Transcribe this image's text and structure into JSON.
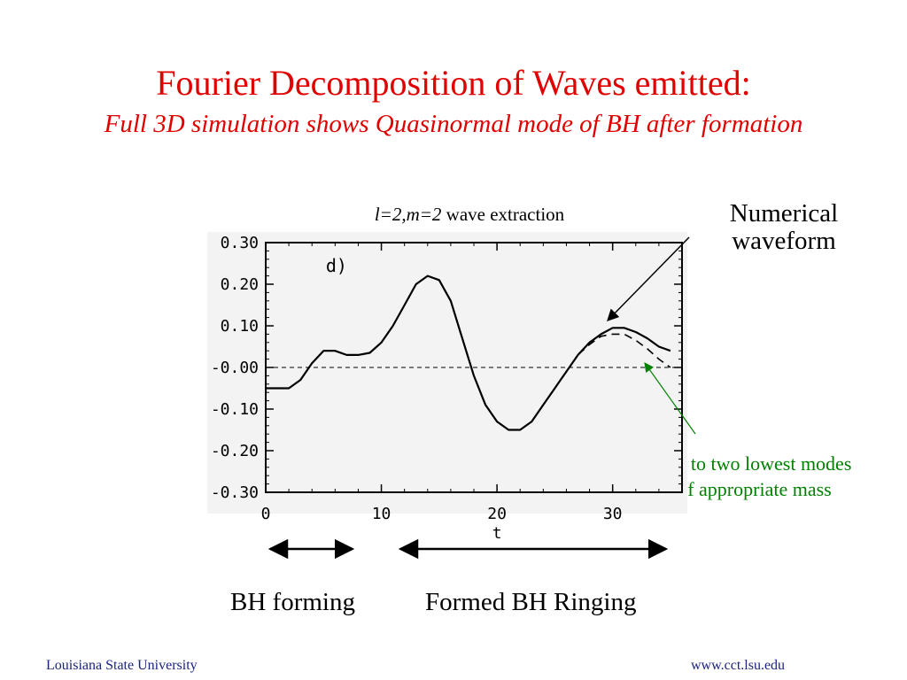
{
  "slide": {
    "title": "Fourier Decomposition of Waves emitted:",
    "subtitle": "Full 3D simulation shows Quasinormal mode of BH after formation",
    "caption_italic": "l=2,m=2",
    "caption_rest": " wave extraction",
    "annotation_numerical": "Numerical waveform",
    "annotation_qnm": "QNM fit to two lowest modes for BH of appropriate mass",
    "label_forming": "BH forming",
    "label_ringing": "Formed BH Ringing",
    "footer_left": "Louisiana State University",
    "footer_right": "www.cct.lsu.edu"
  },
  "colors": {
    "title": "#e00000",
    "qnm_annotation": "#008000",
    "footer": "#1a237e"
  },
  "chart_data": {
    "type": "line",
    "panel_label": "d)",
    "xlabel": "t",
    "ylabel": "",
    "xlim": [
      0,
      36
    ],
    "ylim": [
      -0.3,
      0.3
    ],
    "x_ticks": [
      0,
      10,
      20,
      30
    ],
    "y_ticks": [
      0.3,
      0.2,
      0.1,
      0.0,
      -0.1,
      -0.2,
      -0.3
    ],
    "y_tick_labels": [
      "0.30",
      "0.20",
      "0.10",
      "-0.00",
      "-0.10",
      "-0.20",
      "-0.30"
    ],
    "zero_line": "dashed",
    "series": [
      {
        "style": "solid",
        "x": [
          0,
          2,
          3,
          4,
          5,
          6,
          7,
          8,
          9,
          10,
          11,
          12,
          13,
          14,
          15,
          16,
          17,
          18,
          19,
          20,
          21,
          22,
          23,
          24,
          25,
          26,
          27,
          28,
          29,
          30,
          31,
          32,
          33,
          34,
          35
        ],
        "y": [
          -0.05,
          -0.05,
          -0.03,
          0.01,
          0.04,
          0.04,
          0.03,
          0.03,
          0.035,
          0.06,
          0.1,
          0.15,
          0.2,
          0.22,
          0.21,
          0.16,
          0.07,
          -0.02,
          -0.09,
          -0.13,
          -0.15,
          -0.15,
          -0.13,
          -0.09,
          -0.05,
          -0.01,
          0.03,
          0.06,
          0.08,
          0.095,
          0.095,
          0.085,
          0.07,
          0.05,
          0.04
        ]
      },
      {
        "style": "dashed",
        "x": [
          17,
          18,
          19,
          20,
          21,
          22,
          23,
          24,
          25,
          26,
          27,
          28,
          29,
          30,
          31,
          32,
          33,
          34,
          35
        ],
        "y": [
          0.07,
          -0.02,
          -0.09,
          -0.13,
          -0.15,
          -0.15,
          -0.13,
          -0.09,
          -0.05,
          -0.01,
          0.03,
          0.055,
          0.075,
          0.08,
          0.08,
          0.065,
          0.045,
          0.02,
          0.0
        ]
      }
    ]
  }
}
